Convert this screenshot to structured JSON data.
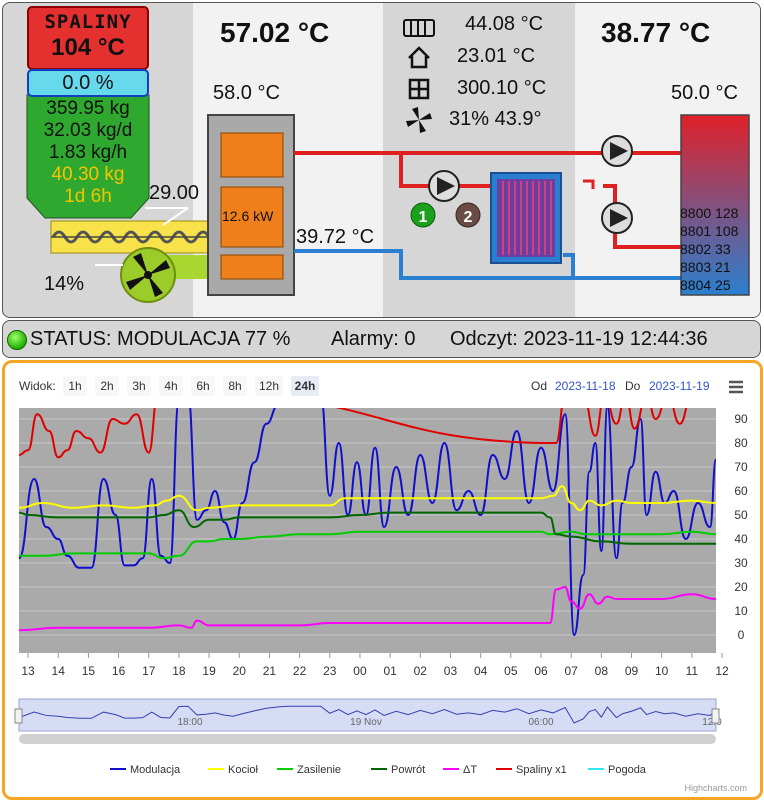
{
  "header": {
    "spaliny_label": "SPALINY",
    "spaliny_value": "104 °C",
    "modulacja_value": "0.0 %",
    "fuel": [
      "359.95 kg",
      "32.03 kg/d",
      "1.83 kg/h",
      "40.30 kg",
      "1d 6h"
    ],
    "boiler_temp_top": "57.02 °C",
    "dhw_temp_top": "38.77 °C",
    "boiler_set": "58.0 °C",
    "boiler_power": "12.6 kW",
    "feeder_value": "29.00",
    "fan_value": "14%",
    "return_temp": "39.72 °C",
    "tank_set": "50.0 °C",
    "readouts": {
      "radiator": "44.08 °C",
      "home": "23.01 °C",
      "window": "300.10 °C",
      "fan": "31% 43.9°"
    },
    "pump_1": "1",
    "pump_2": "2",
    "tank_lines": [
      "8800 128",
      "8801 108",
      "8802 33",
      "8803 21",
      "8804 25"
    ]
  },
  "status": {
    "label": "STATUS: MODULACJA 77 %",
    "alarmy": "Alarmy: 0",
    "odczyt": "Odczyt: 2023-11-19 12:44:36"
  },
  "chart": {
    "widok_label": "Widok:",
    "zoom_buttons": [
      "1h",
      "2h",
      "3h",
      "4h",
      "6h",
      "8h",
      "12h",
      "24h"
    ],
    "active_zoom": "24h",
    "od_label": "Od",
    "od_value": "2023-11-18",
    "do_label": "Do",
    "do_value": "2023-11-19",
    "credits": "Highcharts.com",
    "navigator_labels": [
      "18:00",
      "19 Nov",
      "06:00",
      "12:0"
    ]
  },
  "chart_data": {
    "type": "line",
    "x_labels": [
      "13",
      "14",
      "15",
      "16",
      "17",
      "18",
      "19",
      "20",
      "21",
      "22",
      "23",
      "00",
      "01",
      "02",
      "03",
      "04",
      "05",
      "06",
      "07",
      "08",
      "09",
      "10",
      "11",
      "12"
    ],
    "ylim": [
      0,
      100
    ],
    "y_ticks": [
      0,
      10,
      20,
      30,
      40,
      50,
      60,
      70,
      80,
      90
    ],
    "legend_position": "bottom-center",
    "series": [
      {
        "name": "Modulacja",
        "color": "#1010cc",
        "x": [
          12.7,
          13.2,
          13.6,
          14.0,
          14.3,
          14.7,
          15.1,
          15.5,
          15.9,
          16.2,
          16.5,
          16.8,
          17.1,
          17.4,
          17.7,
          18.0,
          18.3,
          18.6,
          18.9,
          19.2,
          19.5,
          19.8,
          20.1,
          20.5,
          20.9,
          21.3,
          21.6,
          21.9,
          22.3,
          22.7,
          23.0,
          23.3,
          23.6,
          23.9,
          24.2,
          24.5,
          24.8,
          25.2,
          25.6,
          26.0,
          26.4,
          26.8,
          27.2,
          27.6,
          28.0,
          28.4,
          28.8,
          29.2,
          29.6,
          30.0,
          30.4,
          30.8,
          31.1,
          31.4,
          31.6,
          31.8,
          32.0,
          32.2,
          32.5,
          32.7,
          33.0,
          33.3,
          33.5,
          33.8,
          34.1,
          34.4,
          34.8,
          35.2,
          35.6,
          35.8
        ],
        "y": [
          32,
          65,
          45,
          40,
          33,
          28,
          28,
          65,
          50,
          29,
          29,
          32,
          65,
          33,
          30,
          98,
          100,
          48,
          52,
          60,
          47,
          40,
          55,
          72,
          88,
          96,
          100,
          100,
          100,
          100,
          58,
          80,
          50,
          72,
          50,
          78,
          45,
          70,
          50,
          75,
          55,
          80,
          52,
          60,
          50,
          75,
          65,
          85,
          55,
          78,
          60,
          92,
          0,
          25,
          68,
          80,
          35,
          95,
          32,
          55,
          70,
          90,
          50,
          68,
          55,
          60,
          40,
          55,
          45,
          73
        ]
      },
      {
        "name": "Kocioł",
        "color": "#ffff00",
        "x": [
          12.7,
          13.5,
          14.5,
          15.5,
          16.5,
          17.2,
          17.6,
          18.0,
          18.6,
          19.0,
          20,
          21,
          22,
          23.0,
          23.5,
          24,
          25,
          26,
          27,
          28,
          29,
          30,
          30.4,
          30.7,
          31.0,
          31.3,
          31.6,
          32.0,
          32.5,
          33,
          34,
          35,
          35.8
        ],
        "y": [
          53,
          55,
          53,
          54,
          53,
          54,
          56,
          58,
          52,
          53,
          54,
          54,
          54,
          54,
          57,
          57,
          57,
          57,
          57,
          57,
          57,
          57,
          58,
          62,
          55,
          52,
          56,
          54,
          56,
          55,
          55,
          56,
          55
        ]
      },
      {
        "name": "Zasilenie",
        "color": "#00cc00",
        "x": [
          12.7,
          13.5,
          14.5,
          15.5,
          16.5,
          17.0,
          17.5,
          18.0,
          18.6,
          19.0,
          19.5,
          20,
          21,
          22,
          23,
          24,
          25,
          26,
          27,
          28,
          29,
          30,
          30.3,
          31.0,
          31.5,
          32,
          33,
          34,
          35,
          35.8
        ],
        "y": [
          33,
          33,
          34,
          34,
          34,
          34,
          32,
          33,
          39,
          39,
          40,
          40,
          41,
          42,
          42,
          43,
          43,
          43,
          43,
          43,
          43,
          43,
          42,
          43,
          42,
          42,
          42,
          42,
          43,
          42
        ]
      },
      {
        "name": "Powrót",
        "color": "#006600",
        "x": [
          12.7,
          13.0,
          14,
          15,
          16,
          17,
          17.5,
          18.0,
          18.5,
          19.0,
          19.5,
          20,
          21,
          22,
          23,
          24,
          25,
          26,
          27,
          28,
          29,
          30,
          30.3,
          30.5,
          31,
          32,
          33,
          34,
          35,
          35.8
        ],
        "y": [
          51,
          50,
          49,
          49,
          49,
          49,
          50,
          52,
          45,
          48,
          48,
          49,
          49,
          49,
          49,
          50,
          51,
          51,
          51,
          51,
          51,
          51,
          49,
          42,
          41,
          39,
          38,
          38,
          38,
          38
        ]
      },
      {
        "name": "ΔT",
        "color": "#ff00ff",
        "x": [
          12.7,
          14,
          15,
          16,
          17,
          18,
          18.4,
          18.6,
          19,
          20,
          21,
          22,
          23,
          24,
          25,
          26,
          27,
          28,
          29,
          30,
          30.3,
          30.5,
          30.8,
          31.0,
          31.3,
          31.6,
          31.9,
          32.2,
          32.5,
          33,
          34,
          35,
          35.8
        ],
        "y": [
          2,
          3,
          3,
          3,
          3,
          4,
          3,
          6,
          4,
          4,
          4,
          4,
          5,
          5,
          5,
          5,
          5,
          5,
          5,
          5,
          5,
          19,
          20,
          14,
          11,
          17,
          13,
          16,
          15,
          15,
          15,
          17,
          15
        ]
      },
      {
        "name": "Spaliny x1",
        "color": "#e00000",
        "x": [
          12.7,
          13.0,
          13.3,
          13.7,
          14.0,
          14.3,
          14.6,
          15.0,
          15.4,
          15.8,
          16.2,
          16.6,
          17.0,
          17.3,
          17.6,
          18.0,
          18.4,
          18.8,
          19.0,
          30.5,
          30.8,
          31.1,
          31.4,
          31.8,
          32.1,
          32.5,
          32.8,
          33.1,
          33.5,
          33.8,
          34.2,
          34.6,
          35.0,
          35.3,
          35.8
        ],
        "y": [
          75,
          77,
          92,
          85,
          74,
          77,
          85,
          82,
          76,
          90,
          88,
          92,
          76,
          100,
          100,
          100,
          100,
          100,
          100,
          80,
          100,
          100,
          100,
          83,
          100,
          88,
          100,
          86,
          100,
          90,
          100,
          88,
          100,
          95,
          100
        ]
      },
      {
        "name": "Pogoda",
        "color": "#33e8f0",
        "x": [],
        "y": []
      }
    ]
  }
}
